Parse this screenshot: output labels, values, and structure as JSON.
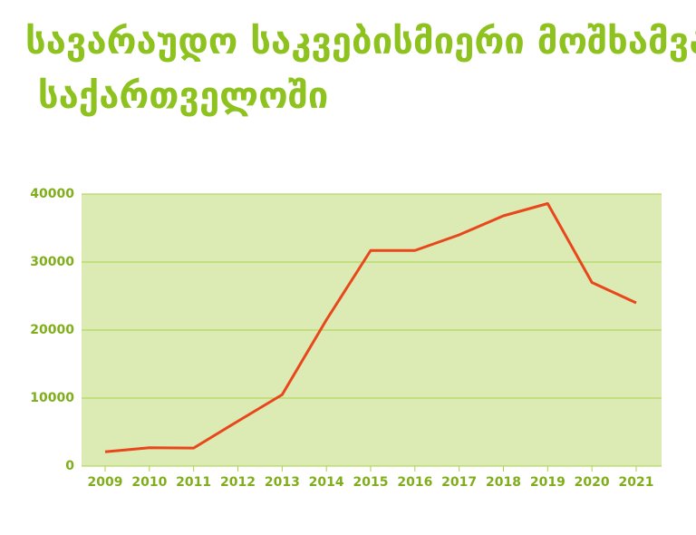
{
  "chart_data": {
    "type": "line",
    "title": "სავარაუდო საკვებისმიერი მოშხამვა საქართველოში",
    "categories": [
      "2009",
      "2010",
      "2011",
      "2012",
      "2013",
      "2014",
      "2015",
      "2016",
      "2017",
      "2018",
      "2019",
      "2020",
      "2021"
    ],
    "values": [
      2100,
      2700,
      2650,
      6600,
      10500,
      21500,
      31700,
      31700,
      34000,
      36800,
      38600,
      27000,
      24000
    ],
    "color": "#e8471c",
    "ylim": [
      0,
      40000
    ],
    "yticks": [
      0,
      10000,
      20000,
      30000,
      40000
    ],
    "grid": true
  }
}
